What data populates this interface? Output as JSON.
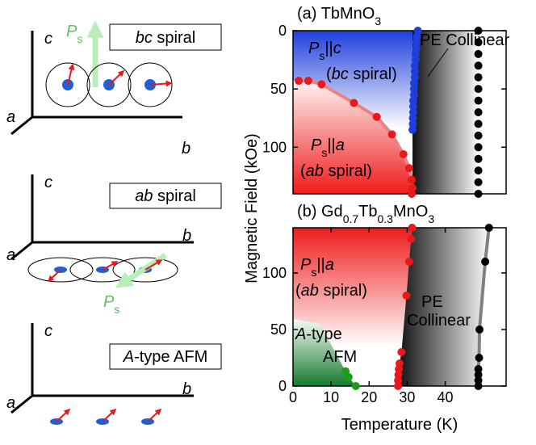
{
  "figure": {
    "ylabel": "Magnetic Field (kOe)",
    "xlabel": "Temperature (K)"
  },
  "diagrams": [
    {
      "label_parts": [
        "bc",
        " spiral"
      ],
      "axis_c": "c",
      "axis_a": "a",
      "axis_b": "b",
      "polarization": [
        "P",
        "s"
      ]
    },
    {
      "label_parts": [
        "ab",
        " spiral"
      ],
      "axis_c": "c",
      "axis_a": "a",
      "axis_b": "b",
      "polarization": [
        "P",
        "s"
      ]
    },
    {
      "label_parts": [
        "A",
        "-type AFM"
      ],
      "axis_c": "c",
      "axis_a": "a",
      "axis_b": "b"
    }
  ],
  "chart_data": [
    {
      "type": "scatter",
      "title_parts": [
        "(a) TbMnO",
        "3"
      ],
      "xlim": [
        0,
        56
      ],
      "ylim": [
        140,
        0
      ],
      "yticks": [
        0,
        50,
        100
      ],
      "series": [
        {
          "color": "#1f3fdd",
          "x": [
            32.8,
            32.6,
            32.4,
            32.4,
            32.2,
            32.2,
            32,
            32,
            32,
            31.8,
            31.8,
            31.8,
            31.6,
            31.6,
            31.6,
            31.5,
            31.5,
            31.4
          ],
          "y": [
            0,
            5,
            10,
            15,
            20,
            25,
            30,
            35,
            40,
            45,
            50,
            55,
            60,
            65,
            70,
            75,
            80,
            85
          ]
        },
        {
          "color": "#e8191b",
          "line": true,
          "line_color": "#f08080",
          "x": [
            1.5,
            4,
            7.5,
            16,
            22,
            26,
            29,
            30.5,
            31.2,
            31.4,
            31.2
          ],
          "y": [
            43,
            43,
            46,
            62,
            74,
            89,
            106,
            118,
            128,
            135,
            140
          ]
        },
        {
          "color": "#000000",
          "x": [
            48.7,
            48.7,
            48.7,
            48.7,
            48.7,
            48.7,
            48.7,
            48.7,
            48.7,
            48.7,
            48.7,
            48.7,
            48.7,
            48.7,
            48.7
          ],
          "y": [
            0,
            10,
            20,
            30,
            40,
            50,
            60,
            70,
            80,
            90,
            100,
            110,
            120,
            130,
            140
          ]
        }
      ],
      "annotations": [
        {
          "parts": [
            "P",
            "s",
            "||",
            "c"
          ]
        },
        {
          "parts": [
            "(",
            "bc",
            " spiral)"
          ]
        },
        {
          "parts": [
            "P",
            "s",
            "||",
            "a"
          ]
        },
        {
          "parts": [
            "(",
            "ab",
            " spiral)"
          ]
        },
        {
          "parts": [
            "PE Collinear"
          ]
        }
      ]
    },
    {
      "type": "scatter",
      "title_parts": [
        "(b) Gd",
        "0.7",
        "Tb",
        "0.3",
        "MnO",
        "3"
      ],
      "xlim": [
        0,
        56
      ],
      "ylim": [
        0,
        140
      ],
      "yticks": [
        0,
        50,
        100
      ],
      "xticks": [
        0,
        10,
        20,
        30,
        40
      ],
      "series": [
        {
          "color": "#e8191b",
          "x": [
            27.6,
            27.6,
            27.7,
            27.8,
            28,
            28.5,
            29.8,
            30.5,
            31,
            31.3
          ],
          "y": [
            0,
            5,
            10,
            15,
            20,
            30,
            80,
            110,
            130,
            140
          ]
        },
        {
          "color": "#1a9e1a",
          "x": [
            13.8,
            14.6,
            16.5
          ],
          "y": [
            13,
            8,
            0
          ]
        },
        {
          "color": "#000000",
          "line": true,
          "line_color": "#808080",
          "x": [
            48.7,
            48.7,
            48.7,
            48.7,
            48.9,
            49,
            50.5,
            51.5
          ],
          "y": [
            0,
            5,
            10,
            15,
            25,
            50,
            110,
            140
          ]
        }
      ],
      "annotations": [
        {
          "parts": [
            "P",
            "s",
            "||",
            "a"
          ]
        },
        {
          "parts": [
            "(",
            "ab",
            " spiral)"
          ]
        },
        {
          "parts": [
            "PE"
          ]
        },
        {
          "parts": [
            "Collinear"
          ]
        },
        {
          "parts": [
            "A",
            "-type"
          ]
        },
        {
          "parts": [
            "AFM"
          ]
        }
      ]
    }
  ]
}
